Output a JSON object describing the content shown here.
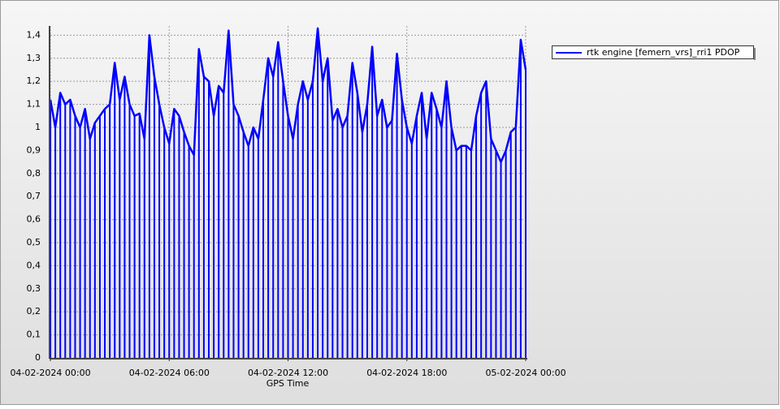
{
  "chart_data": {
    "type": "line",
    "x_label": "GPS Time",
    "drop_lines": true,
    "grid": true,
    "legend_position": "right",
    "x": [
      "04-02-2024 00:00",
      "04-02-2024 00:15",
      "04-02-2024 00:30",
      "04-02-2024 00:45",
      "04-02-2024 01:00",
      "04-02-2024 01:15",
      "04-02-2024 01:30",
      "04-02-2024 01:45",
      "04-02-2024 02:00",
      "04-02-2024 02:15",
      "04-02-2024 02:30",
      "04-02-2024 02:45",
      "04-02-2024 03:00",
      "04-02-2024 03:15",
      "04-02-2024 03:30",
      "04-02-2024 03:45",
      "04-02-2024 04:00",
      "04-02-2024 04:15",
      "04-02-2024 04:30",
      "04-02-2024 04:45",
      "04-02-2024 05:00",
      "04-02-2024 05:15",
      "04-02-2024 05:30",
      "04-02-2024 05:45",
      "04-02-2024 06:00",
      "04-02-2024 06:15",
      "04-02-2024 06:30",
      "04-02-2024 06:45",
      "04-02-2024 07:00",
      "04-02-2024 07:15",
      "04-02-2024 07:30",
      "04-02-2024 07:45",
      "04-02-2024 08:00",
      "04-02-2024 08:15",
      "04-02-2024 08:30",
      "04-02-2024 08:45",
      "04-02-2024 09:00",
      "04-02-2024 09:15",
      "04-02-2024 09:30",
      "04-02-2024 09:45",
      "04-02-2024 10:00",
      "04-02-2024 10:15",
      "04-02-2024 10:30",
      "04-02-2024 10:45",
      "04-02-2024 11:00",
      "04-02-2024 11:15",
      "04-02-2024 11:30",
      "04-02-2024 11:45",
      "04-02-2024 12:00",
      "04-02-2024 12:15",
      "04-02-2024 12:30",
      "04-02-2024 12:45",
      "04-02-2024 13:00",
      "04-02-2024 13:15",
      "04-02-2024 13:30",
      "04-02-2024 13:45",
      "04-02-2024 14:00",
      "04-02-2024 14:15",
      "04-02-2024 14:30",
      "04-02-2024 14:45",
      "04-02-2024 15:00",
      "04-02-2024 15:15",
      "04-02-2024 15:30",
      "04-02-2024 15:45",
      "04-02-2024 16:00",
      "04-02-2024 16:15",
      "04-02-2024 16:30",
      "04-02-2024 16:45",
      "04-02-2024 17:00",
      "04-02-2024 17:15",
      "04-02-2024 17:30",
      "04-02-2024 17:45",
      "04-02-2024 18:00",
      "04-02-2024 18:15",
      "04-02-2024 18:30",
      "04-02-2024 18:45",
      "04-02-2024 19:00",
      "04-02-2024 19:15",
      "04-02-2024 19:30",
      "04-02-2024 19:45",
      "04-02-2024 20:00",
      "04-02-2024 20:15",
      "04-02-2024 20:30",
      "04-02-2024 20:45",
      "04-02-2024 21:00",
      "04-02-2024 21:15",
      "04-02-2024 21:30",
      "04-02-2024 21:45",
      "04-02-2024 22:00",
      "04-02-2024 22:15",
      "04-02-2024 22:30",
      "04-02-2024 22:45",
      "04-02-2024 23:00",
      "04-02-2024 23:15",
      "04-02-2024 23:30",
      "04-02-2024 23:45",
      "05-02-2024 00:00"
    ],
    "series": [
      {
        "name": "rtk engine [femern_vrs]_rri1 PDOP",
        "color": "#0000ff",
        "values": [
          1.12,
          1.0,
          1.15,
          1.1,
          1.12,
          1.05,
          1.0,
          1.08,
          0.95,
          1.02,
          1.05,
          1.08,
          1.1,
          1.28,
          1.12,
          1.22,
          1.1,
          1.05,
          1.06,
          0.95,
          1.4,
          1.22,
          1.1,
          1.0,
          0.93,
          1.08,
          1.05,
          0.98,
          0.92,
          0.88,
          1.34,
          1.22,
          1.2,
          1.05,
          1.18,
          1.15,
          1.42,
          1.1,
          1.05,
          0.98,
          0.92,
          1.0,
          0.95,
          1.12,
          1.3,
          1.22,
          1.37,
          1.2,
          1.05,
          0.95,
          1.1,
          1.2,
          1.12,
          1.2,
          1.43,
          1.2,
          1.3,
          1.03,
          1.08,
          1.0,
          1.05,
          1.28,
          1.15,
          0.98,
          1.1,
          1.35,
          1.05,
          1.12,
          1.0,
          1.03,
          1.32,
          1.12,
          1.0,
          0.93,
          1.05,
          1.15,
          0.95,
          1.15,
          1.08,
          1.0,
          1.2,
          1.0,
          0.9,
          0.92,
          0.92,
          0.9,
          1.05,
          1.15,
          1.2,
          0.95,
          0.9,
          0.85,
          0.9,
          0.98,
          1.0,
          1.38,
          1.25
        ]
      }
    ],
    "xlim": [
      "04-02-2024 00:00",
      "05-02-2024 00:00"
    ],
    "xticks": [
      "04-02-2024 00:00",
      "04-02-2024 06:00",
      "04-02-2024 12:00",
      "04-02-2024 18:00",
      "05-02-2024 00:00"
    ],
    "ylim": [
      0,
      1.44
    ],
    "yticks": [
      0,
      {
        "value": 0.1,
        "label": "0,1"
      },
      {
        "value": 0.2,
        "label": "0,2"
      },
      {
        "value": 0.3,
        "label": "0,3"
      },
      {
        "value": 0.4,
        "label": "0,4"
      },
      {
        "value": 0.5,
        "label": "0,5"
      },
      {
        "value": 0.6,
        "label": "0,6"
      },
      {
        "value": 0.7,
        "label": "0,7"
      },
      {
        "value": 0.8,
        "label": "0,8"
      },
      {
        "value": 0.9,
        "label": "0,9"
      },
      1,
      {
        "value": 1.1,
        "label": "1,1"
      },
      {
        "value": 1.2,
        "label": "1,2"
      },
      {
        "value": 1.3,
        "label": "1,3"
      },
      {
        "value": 1.4,
        "label": "1,4"
      }
    ]
  }
}
